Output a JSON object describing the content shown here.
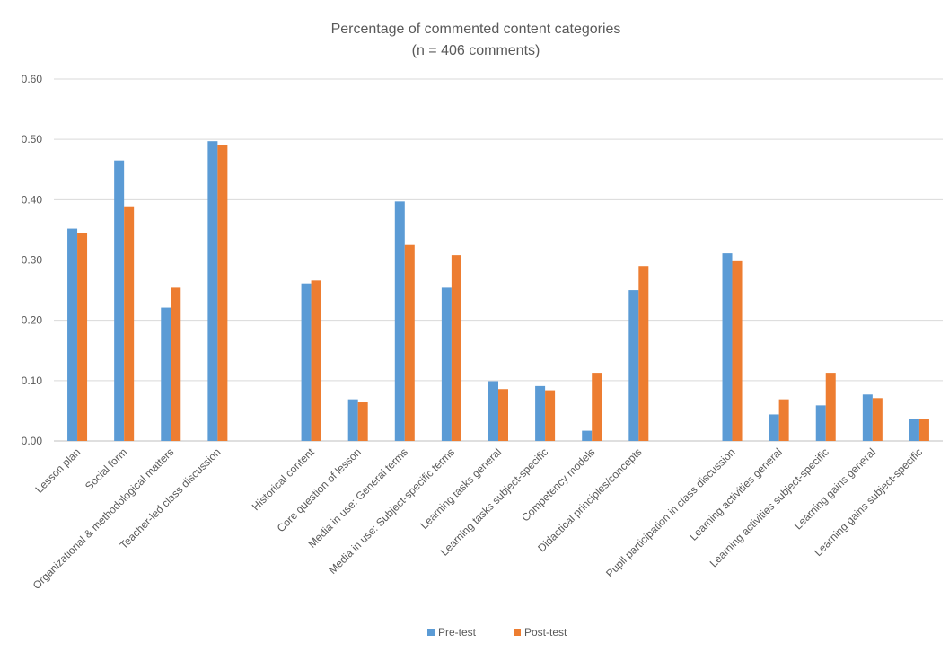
{
  "chart_data": {
    "type": "bar",
    "title": "Percentage of commented content categories",
    "subtitle": "(n = 406 comments)",
    "xlabel": "",
    "ylabel": "",
    "ylim": [
      0,
      0.6
    ],
    "yticks": [
      "0.00",
      "0.10",
      "0.20",
      "0.30",
      "0.40",
      "0.50",
      "0.60"
    ],
    "grid": true,
    "legend_position": "bottom",
    "groups": [
      [
        "Lesson plan",
        "Social form",
        "Organizational & methodological matters",
        "Teacher-led class discussion"
      ],
      [
        "Historical content",
        "Core question of lesson",
        "Media in use: General terms",
        "Media in use: Subject-specific terms",
        "Learning tasks general",
        "Learning tasks subject-specific",
        "Competency models",
        "Didactical principles/concepts"
      ],
      [
        "Pupil participation in class discussion",
        "Learning activities general",
        "Learning activities subject-specific",
        "Learning gains general",
        "Learning gains subject-specific"
      ]
    ],
    "categories": [
      "Lesson plan",
      "Social form",
      "Organizational & methodological matters",
      "Teacher-led class discussion",
      "Historical content",
      "Core question of lesson",
      "Media in use: General terms",
      "Media in use: Subject-specific terms",
      "Learning tasks general",
      "Learning tasks subject-specific",
      "Competency models",
      "Didactical principles/concepts",
      "Pupil participation in class discussion",
      "Learning activities general",
      "Learning activities subject-specific",
      "Learning gains general",
      "Learning gains subject-specific"
    ],
    "series": [
      {
        "name": "Pre-test",
        "color": "#5b9bd5",
        "values": [
          0.352,
          0.465,
          0.221,
          0.497,
          0.261,
          0.069,
          0.397,
          0.254,
          0.099,
          0.091,
          0.017,
          0.25,
          0.311,
          0.044,
          0.059,
          0.077,
          0.036
        ]
      },
      {
        "name": "Post-test",
        "color": "#ed7d31",
        "values": [
          0.345,
          0.389,
          0.254,
          0.49,
          0.266,
          0.064,
          0.325,
          0.308,
          0.086,
          0.084,
          0.113,
          0.29,
          0.298,
          0.069,
          0.113,
          0.071,
          0.036
        ]
      }
    ]
  }
}
